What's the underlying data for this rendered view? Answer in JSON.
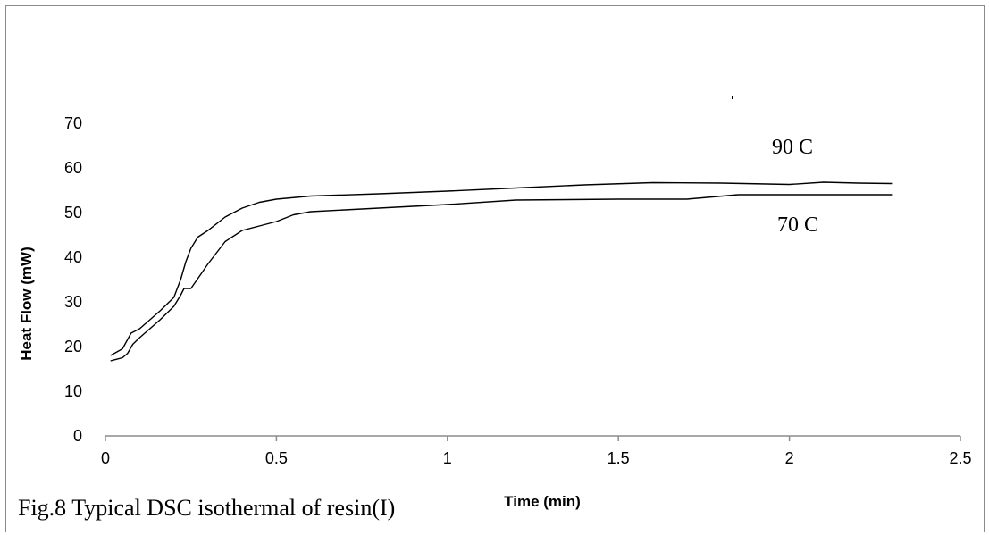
{
  "chart_data": {
    "type": "line",
    "xlabel": "Time (min)",
    "ylabel": "Heat Flow (mW)",
    "xlim": [
      0,
      2.5
    ],
    "ylim": [
      0,
      70
    ],
    "x_ticks": [
      "0",
      "0.5",
      "1",
      "1.5",
      "2",
      "2.5"
    ],
    "y_ticks": [
      "0",
      "10",
      "20",
      "30",
      "40",
      "50",
      "60",
      "70"
    ],
    "grid": false,
    "legend": "none",
    "series": [
      {
        "name": "90 C",
        "points": [
          [
            0.015,
            18
          ],
          [
            0.05,
            19.5
          ],
          [
            0.075,
            23
          ],
          [
            0.1,
            24
          ],
          [
            0.13,
            26
          ],
          [
            0.16,
            28
          ],
          [
            0.2,
            31
          ],
          [
            0.22,
            35
          ],
          [
            0.235,
            39
          ],
          [
            0.25,
            42
          ],
          [
            0.27,
            44.5
          ],
          [
            0.3,
            46
          ],
          [
            0.35,
            49
          ],
          [
            0.4,
            51
          ],
          [
            0.45,
            52.3
          ],
          [
            0.5,
            53
          ],
          [
            0.6,
            53.7
          ],
          [
            0.8,
            54.2
          ],
          [
            1.0,
            54.8
          ],
          [
            1.2,
            55.5
          ],
          [
            1.4,
            56.2
          ],
          [
            1.6,
            56.7
          ],
          [
            1.8,
            56.6
          ],
          [
            2.0,
            56.3
          ],
          [
            2.1,
            56.8
          ],
          [
            2.2,
            56.6
          ],
          [
            2.3,
            56.5
          ]
        ]
      },
      {
        "name": "70 C",
        "points": [
          [
            0.015,
            16.8
          ],
          [
            0.05,
            17.5
          ],
          [
            0.065,
            18.5
          ],
          [
            0.08,
            20.5
          ],
          [
            0.1,
            22
          ],
          [
            0.13,
            24
          ],
          [
            0.16,
            26
          ],
          [
            0.2,
            29
          ],
          [
            0.22,
            31.5
          ],
          [
            0.23,
            33
          ],
          [
            0.25,
            33
          ],
          [
            0.3,
            38.5
          ],
          [
            0.35,
            43.5
          ],
          [
            0.4,
            46
          ],
          [
            0.45,
            47
          ],
          [
            0.5,
            48
          ],
          [
            0.55,
            49.5
          ],
          [
            0.6,
            50.2
          ],
          [
            0.8,
            51
          ],
          [
            1.0,
            51.8
          ],
          [
            1.2,
            52.8
          ],
          [
            1.5,
            53
          ],
          [
            1.7,
            53
          ],
          [
            1.85,
            54
          ],
          [
            2.0,
            54
          ],
          [
            2.3,
            54
          ]
        ]
      }
    ],
    "annotations": [
      "90 C",
      "70 C"
    ]
  },
  "caption": "Fig.8 Typical DSC isothermal of  resin(I)"
}
